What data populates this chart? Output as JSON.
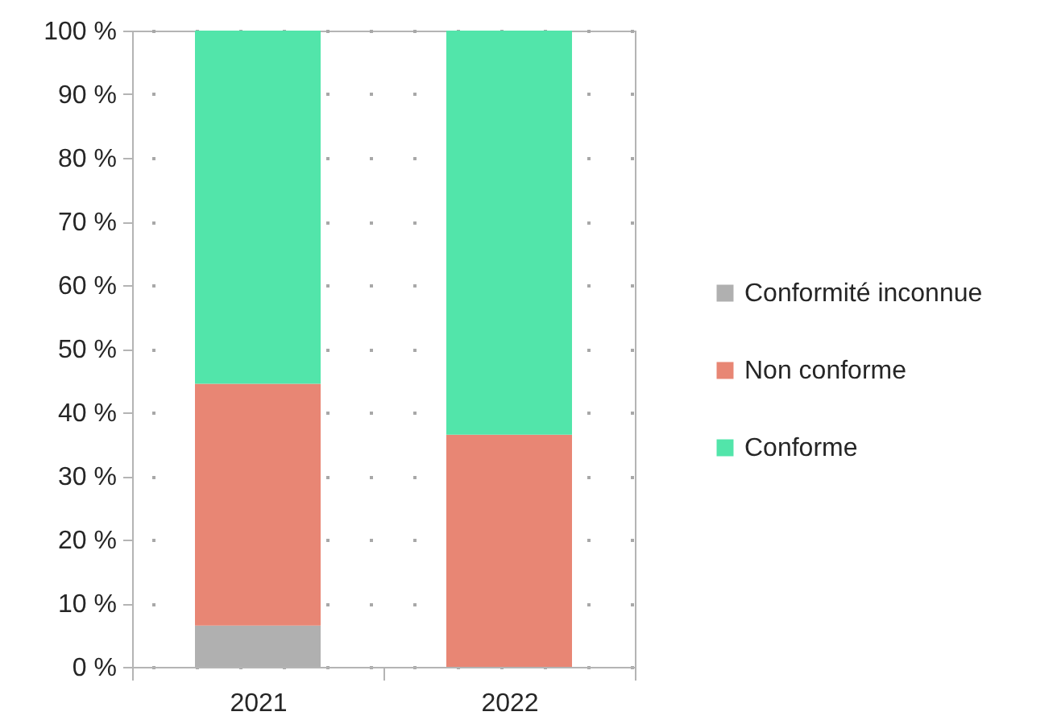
{
  "chart_data": {
    "type": "bar",
    "stacked": true,
    "categories": [
      "2021",
      "2022"
    ],
    "series": [
      {
        "name": "Conformité inconnue",
        "color": "#b0b0b0",
        "values": [
          6.5,
          null
        ]
      },
      {
        "name": "Non conforme",
        "color": "#e88674",
        "values": [
          38,
          36.5
        ]
      },
      {
        "name": "Conforme",
        "color": "#52e5aa",
        "values": [
          55.5,
          63.5
        ]
      }
    ],
    "ylim": [
      0,
      100
    ],
    "yticks": [
      {
        "value": 0,
        "label": "0 %"
      },
      {
        "value": 10,
        "label": "10 %"
      },
      {
        "value": 20,
        "label": "20 %"
      },
      {
        "value": 30,
        "label": "30 %"
      },
      {
        "value": 40,
        "label": "40 %"
      },
      {
        "value": 50,
        "label": "50 %"
      },
      {
        "value": 60,
        "label": "60 %"
      },
      {
        "value": 70,
        "label": "70 %"
      },
      {
        "value": 80,
        "label": "80 %"
      },
      {
        "value": 90,
        "label": "90 %"
      },
      {
        "value": 100,
        "label": "100 %"
      }
    ],
    "grid": "y",
    "legend": "right"
  }
}
